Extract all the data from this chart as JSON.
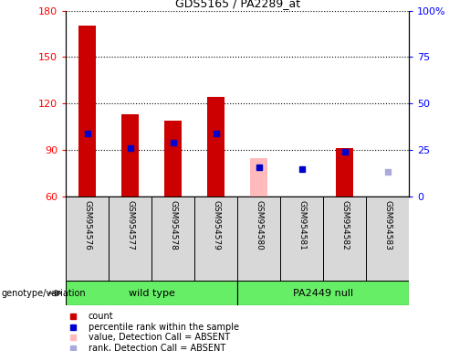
{
  "title": "GDS5165 / PA2289_at",
  "samples": [
    "GSM954576",
    "GSM954577",
    "GSM954578",
    "GSM954579",
    "GSM954580",
    "GSM954581",
    "GSM954582",
    "GSM954583"
  ],
  "bar_tops": [
    170,
    113,
    109,
    124,
    85,
    60,
    91,
    60
  ],
  "bar_bottom": 60,
  "blue_square_y": [
    101,
    91,
    95,
    101,
    79,
    78,
    89,
    null
  ],
  "absent_rank_y": [
    null,
    null,
    null,
    null,
    null,
    null,
    null,
    76
  ],
  "absent_indices": [
    4,
    5,
    7
  ],
  "ylim_left": [
    60,
    180
  ],
  "ylim_right": [
    0,
    100
  ],
  "yticks_left": [
    60,
    90,
    120,
    150,
    180
  ],
  "yticks_right": [
    0,
    25,
    50,
    75,
    100
  ],
  "ytick_labels_right": [
    "0",
    "25",
    "50",
    "75",
    "100%"
  ],
  "bar_color": "#cc0000",
  "absent_bar_color": "#ffbbbb",
  "blue_color": "#0000cc",
  "absent_rank_color": "#aaaadd",
  "group_green": "#66ee66",
  "cell_gray": "#d8d8d8",
  "legend_items": [
    {
      "label": "count",
      "color": "#cc0000"
    },
    {
      "label": "percentile rank within the sample",
      "color": "#0000cc"
    },
    {
      "label": "value, Detection Call = ABSENT",
      "color": "#ffbbbb"
    },
    {
      "label": "rank, Detection Call = ABSENT",
      "color": "#aaaadd"
    }
  ],
  "wild_type_range": [
    0,
    3
  ],
  "pa2449_range": [
    4,
    7
  ]
}
